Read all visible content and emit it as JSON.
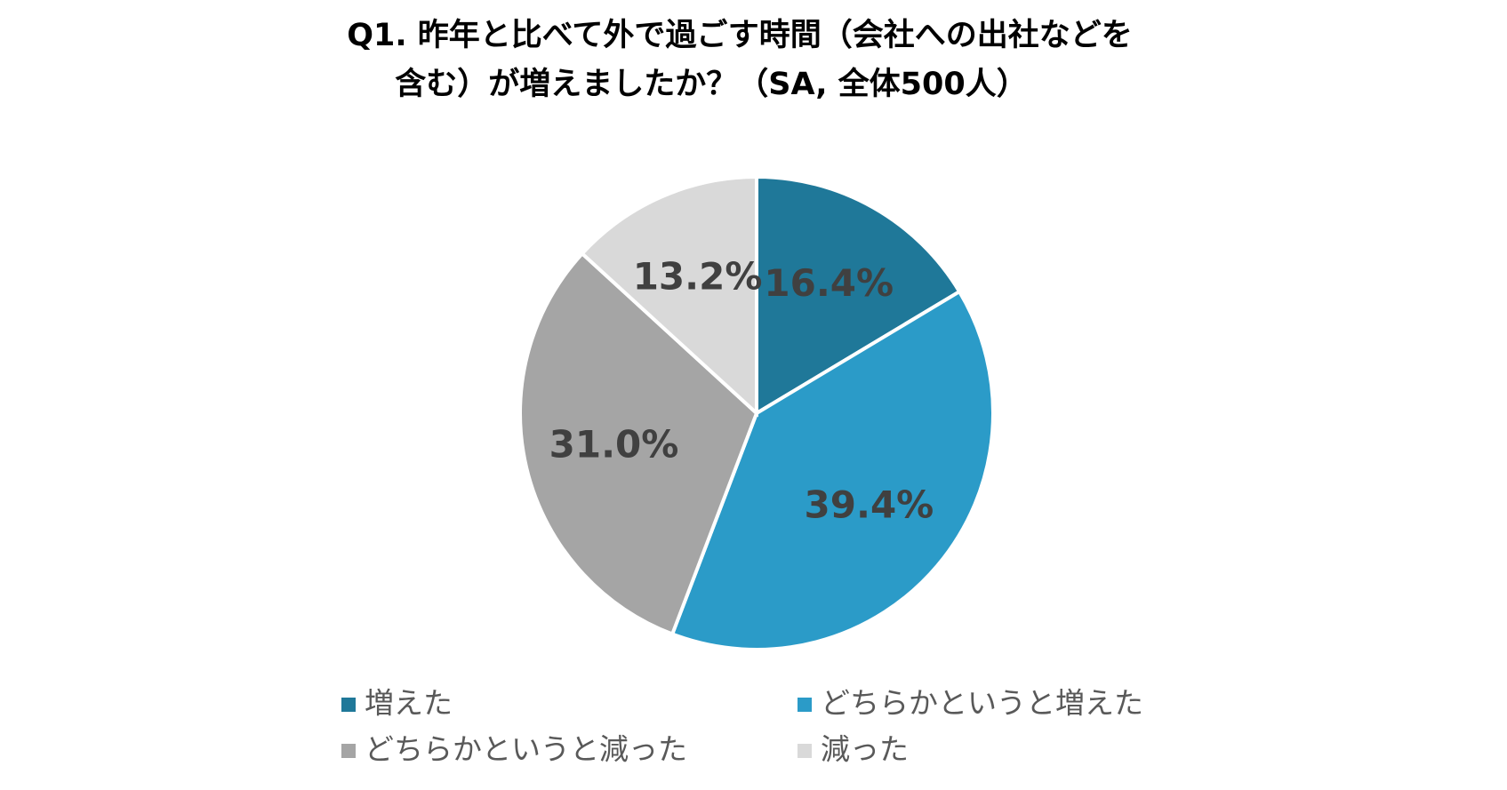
{
  "chart_data": {
    "type": "pie",
    "title": [
      "Q1. 昨年と比べて外で過ごす時間（会社への出社などを",
      "含む）が増えましたか？（SA, 全体500人）"
    ],
    "categories": [
      "増えた",
      "どちらかというと増えた",
      "どちらかというと減った",
      "減った"
    ],
    "values": [
      16.4,
      39.4,
      31.0,
      13.2
    ],
    "value_labels": [
      "16.4%",
      "39.4%",
      "31.0%",
      "13.2%"
    ],
    "colors": [
      "#1f7899",
      "#2b9bc8",
      "#a5a5a5",
      "#d9d9d9"
    ],
    "legend": "bottom"
  }
}
